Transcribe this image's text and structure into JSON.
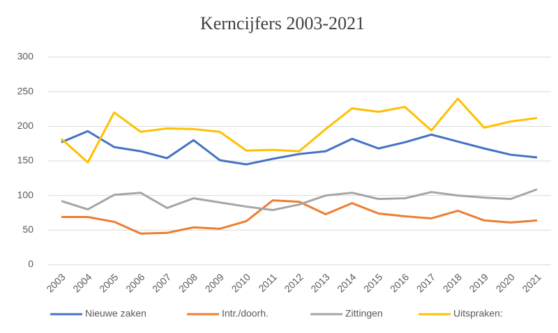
{
  "chart_data": {
    "type": "line",
    "title": "Kerncijfers 2003-2021",
    "categories": [
      "2003",
      "2004",
      "2005",
      "2006",
      "2007",
      "2008",
      "2009",
      "2010",
      "2011",
      "2012",
      "2013",
      "2014",
      "2015",
      "2016",
      "2017",
      "2018",
      "2019",
      "2020",
      "2021"
    ],
    "series": [
      {
        "name": "Nieuwe zaken",
        "color": "#4472c4",
        "values": [
          177,
          193,
          170,
          164,
          154,
          180,
          151,
          145,
          153,
          160,
          164,
          182,
          168,
          177,
          188,
          178,
          168,
          159,
          155
        ]
      },
      {
        "name": "Intr./doorh.",
        "color": "#ed7d31",
        "values": [
          69,
          69,
          62,
          45,
          46,
          54,
          52,
          63,
          93,
          91,
          73,
          89,
          74,
          70,
          67,
          78,
          64,
          61,
          64
        ]
      },
      {
        "name": "Zittingen",
        "color": "#a5a5a5",
        "values": [
          92,
          80,
          101,
          104,
          82,
          96,
          90,
          84,
          79,
          87,
          100,
          104,
          95,
          96,
          105,
          100,
          97,
          95,
          109
        ]
      },
      {
        "name": "Uitspraken:",
        "color": "#ffc000",
        "values": [
          182,
          148,
          220,
          192,
          197,
          196,
          192,
          165,
          166,
          164,
          196,
          226,
          221,
          228,
          194,
          240,
          198,
          207,
          212
        ]
      }
    ],
    "ylim": [
      0,
      300
    ],
    "yticks": [
      0,
      50,
      100,
      150,
      200,
      250,
      300
    ],
    "grid": true,
    "legend": "bottom"
  }
}
